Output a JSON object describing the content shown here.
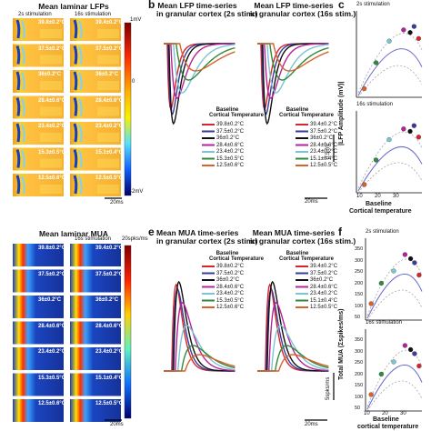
{
  "panel_letters": {
    "a": "",
    "b": "b",
    "c": "c",
    "d": "",
    "e": "e",
    "f": "f"
  },
  "panel_a": {
    "title": "Mean laminar LFPs",
    "col1": "2s stimulation",
    "col2": "16s stimulation",
    "temps_2s": [
      "39.8±0.2°C",
      "37.5±0.2°C",
      "36±0.2°C",
      "28.4±0.6°C",
      "23.4±0.2°C",
      "15.3±0.5°C",
      "12.5±0.6°C"
    ],
    "temps_16s": [
      "39.4±0.2°C",
      "37.5±0.2°C",
      "36±0.2°C",
      "28.4±0.6°C",
      "23.4±0.2°C",
      "15.1±0.4°C",
      "12.5±0.5°C"
    ],
    "colorbar_top": "1mV",
    "colorbar_mid": "0",
    "colorbar_bot": "-2mV",
    "scalebar": "20ms"
  },
  "panel_b": {
    "title1": "Mean LFP time-series",
    "title1b": "in granular cortex (2s stim.)",
    "title2": "Mean LFP time-series",
    "title2b": "in granular cortex (16s stim.)",
    "legend_title1": "Baseline",
    "legend_title2": "Cortical Temperature",
    "legend_2s": [
      "39.8±0.2°C",
      "37.5±0.2°C",
      "36±0.2°C",
      "28.4±0.6°C",
      "23.4±0.2°C",
      "15.3±0.5°C",
      "12.5±0.6°C"
    ],
    "legend_16s": [
      "39.4±0.2°C",
      "37.5±0.2°C",
      "36±0.2°C",
      "28.4±0.6°C",
      "23.4±0.2°C",
      "15.1±0.4°C",
      "12.5±0.5°C"
    ],
    "scale_y": "0.5mV",
    "scale_x": "20ms"
  },
  "panel_c": {
    "top_label": "2s stimulation",
    "bottom_label": "16s stimulation",
    "ylabel": "|LFP Amplitude (mV)|",
    "xlabel1": "Baseline",
    "xlabel2": "Cortical temperature",
    "xticks": [
      "10",
      "20",
      "30"
    ]
  },
  "panel_d": {
    "title": "Mean laminar MUA",
    "col2": "16s stimulation",
    "units": "20spks/ms",
    "scalebar": "20ms"
  },
  "panel_e": {
    "title1": "Mean MUA time-series",
    "title1b": "in granular cortex (2s stim.)",
    "title2": "Mean MUA time-series",
    "title2b": "in granular cortex (16s stim.)",
    "scale_y": "5spks/ms",
    "scale_x": "20ms"
  },
  "panel_f": {
    "top_label": "2s stimulation",
    "bottom_label": "16s stimulation",
    "ylabel": "Total MUA (Σspikes/ms)",
    "yticks_top": [
      "50",
      "100",
      "150",
      "200",
      "250",
      "300",
      "350"
    ],
    "yticks_bottom": [
      "50",
      "100",
      "150",
      "200",
      "250",
      "300",
      "350"
    ],
    "xticks": [
      "10",
      "20",
      "30"
    ],
    "xlabel1": "Baseline",
    "xlabel2": "cortical temperature"
  },
  "series_colors": [
    "#d7262b",
    "#3b3b9a",
    "#111111",
    "#b5239a",
    "#7ac4d6",
    "#2e8b3b",
    "#d9612a"
  ]
}
